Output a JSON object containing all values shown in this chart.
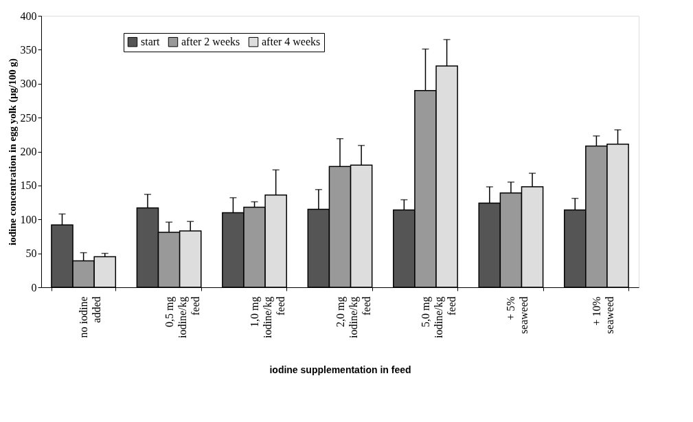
{
  "chart_data": {
    "type": "bar",
    "xlabel": "iodine supplementation in feed",
    "ylabel": "iodine concentration in egg yolk (µg/100 g)",
    "categories": [
      "no iodine added",
      "0,5 mg iodine/kg feed",
      "1,0 mg iodine/kg feed",
      "2,0 mg iodine/kg feed",
      "5,0 mg iodine/kg feed",
      "+ 5% seaweed",
      "+ 10% seaweed"
    ],
    "series": [
      {
        "name": "start",
        "color": "#555555",
        "values": [
          92,
          117,
          110,
          115,
          114,
          124,
          114
        ],
        "errors": [
          [
            92,
            108
          ],
          [
            117,
            137
          ],
          [
            110,
            132
          ],
          [
            115,
            144
          ],
          [
            114,
            129
          ],
          [
            124,
            148
          ],
          [
            114,
            131
          ]
        ]
      },
      {
        "name": "after 2 weeks",
        "color": "#999999",
        "values": [
          39,
          81,
          118,
          178,
          290,
          139,
          208
        ],
        "errors": [
          [
            39,
            51
          ],
          [
            81,
            96
          ],
          [
            118,
            126
          ],
          [
            178,
            219
          ],
          [
            290,
            351
          ],
          [
            139,
            155
          ],
          [
            208,
            223
          ]
        ]
      },
      {
        "name": "after 4 weeks",
        "color": "#dddddd",
        "values": [
          45,
          83,
          136,
          180,
          326,
          148,
          211
        ],
        "errors": [
          [
            45,
            50
          ],
          [
            83,
            97
          ],
          [
            136,
            173
          ],
          [
            180,
            209
          ],
          [
            326,
            365
          ],
          [
            148,
            168
          ],
          [
            211,
            232
          ]
        ]
      }
    ],
    "ylim": [
      0,
      400
    ],
    "yticks": [
      0,
      50,
      100,
      150,
      200,
      250,
      300,
      350,
      400
    ],
    "legend": "top left",
    "grid": false
  }
}
